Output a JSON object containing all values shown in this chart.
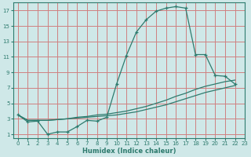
{
  "xlabel": "Humidex (Indice chaleur)",
  "bg_color": "#cfe8e8",
  "grid_color": "#d08080",
  "line_color": "#2e7b6e",
  "xlim": [
    -0.5,
    23
  ],
  "ylim": [
    0.5,
    18
  ],
  "xticks": [
    0,
    1,
    2,
    3,
    4,
    5,
    6,
    7,
    8,
    9,
    10,
    11,
    12,
    13,
    14,
    15,
    16,
    17,
    18,
    19,
    20,
    21,
    22,
    23
  ],
  "yticks": [
    1,
    3,
    5,
    7,
    9,
    11,
    13,
    15,
    17
  ],
  "line1_x": [
    0,
    1,
    2,
    3,
    4,
    5,
    6,
    7,
    8,
    9,
    10,
    11,
    12,
    13,
    14,
    15,
    16,
    17,
    18,
    19,
    20,
    21,
    22
  ],
  "line1_y": [
    3.5,
    2.6,
    2.7,
    1.0,
    1.3,
    1.3,
    2.0,
    2.8,
    2.7,
    3.2,
    7.5,
    11.2,
    14.2,
    15.8,
    16.9,
    17.3,
    17.5,
    17.3,
    11.3,
    11.3,
    8.6,
    8.5,
    7.5
  ],
  "line2_x": [
    0,
    1,
    2,
    3,
    4,
    5,
    6,
    7,
    8,
    9,
    10,
    11,
    12,
    13,
    14,
    15,
    16,
    17,
    18,
    19,
    20,
    21,
    22
  ],
  "line2_y": [
    3.5,
    2.8,
    2.8,
    2.8,
    2.9,
    3.0,
    3.2,
    3.3,
    3.5,
    3.6,
    3.8,
    4.0,
    4.3,
    4.6,
    5.0,
    5.4,
    5.9,
    6.3,
    6.8,
    7.2,
    7.5,
    7.8,
    8.0
  ],
  "line3_x": [
    0,
    1,
    2,
    3,
    4,
    5,
    6,
    7,
    8,
    9,
    10,
    11,
    12,
    13,
    14,
    15,
    16,
    17,
    18,
    19,
    20,
    21,
    22
  ],
  "line3_y": [
    3.5,
    2.8,
    2.8,
    2.8,
    2.9,
    3.0,
    3.1,
    3.2,
    3.3,
    3.4,
    3.5,
    3.7,
    3.9,
    4.2,
    4.5,
    4.8,
    5.2,
    5.6,
    6.0,
    6.4,
    6.7,
    7.0,
    7.3
  ]
}
